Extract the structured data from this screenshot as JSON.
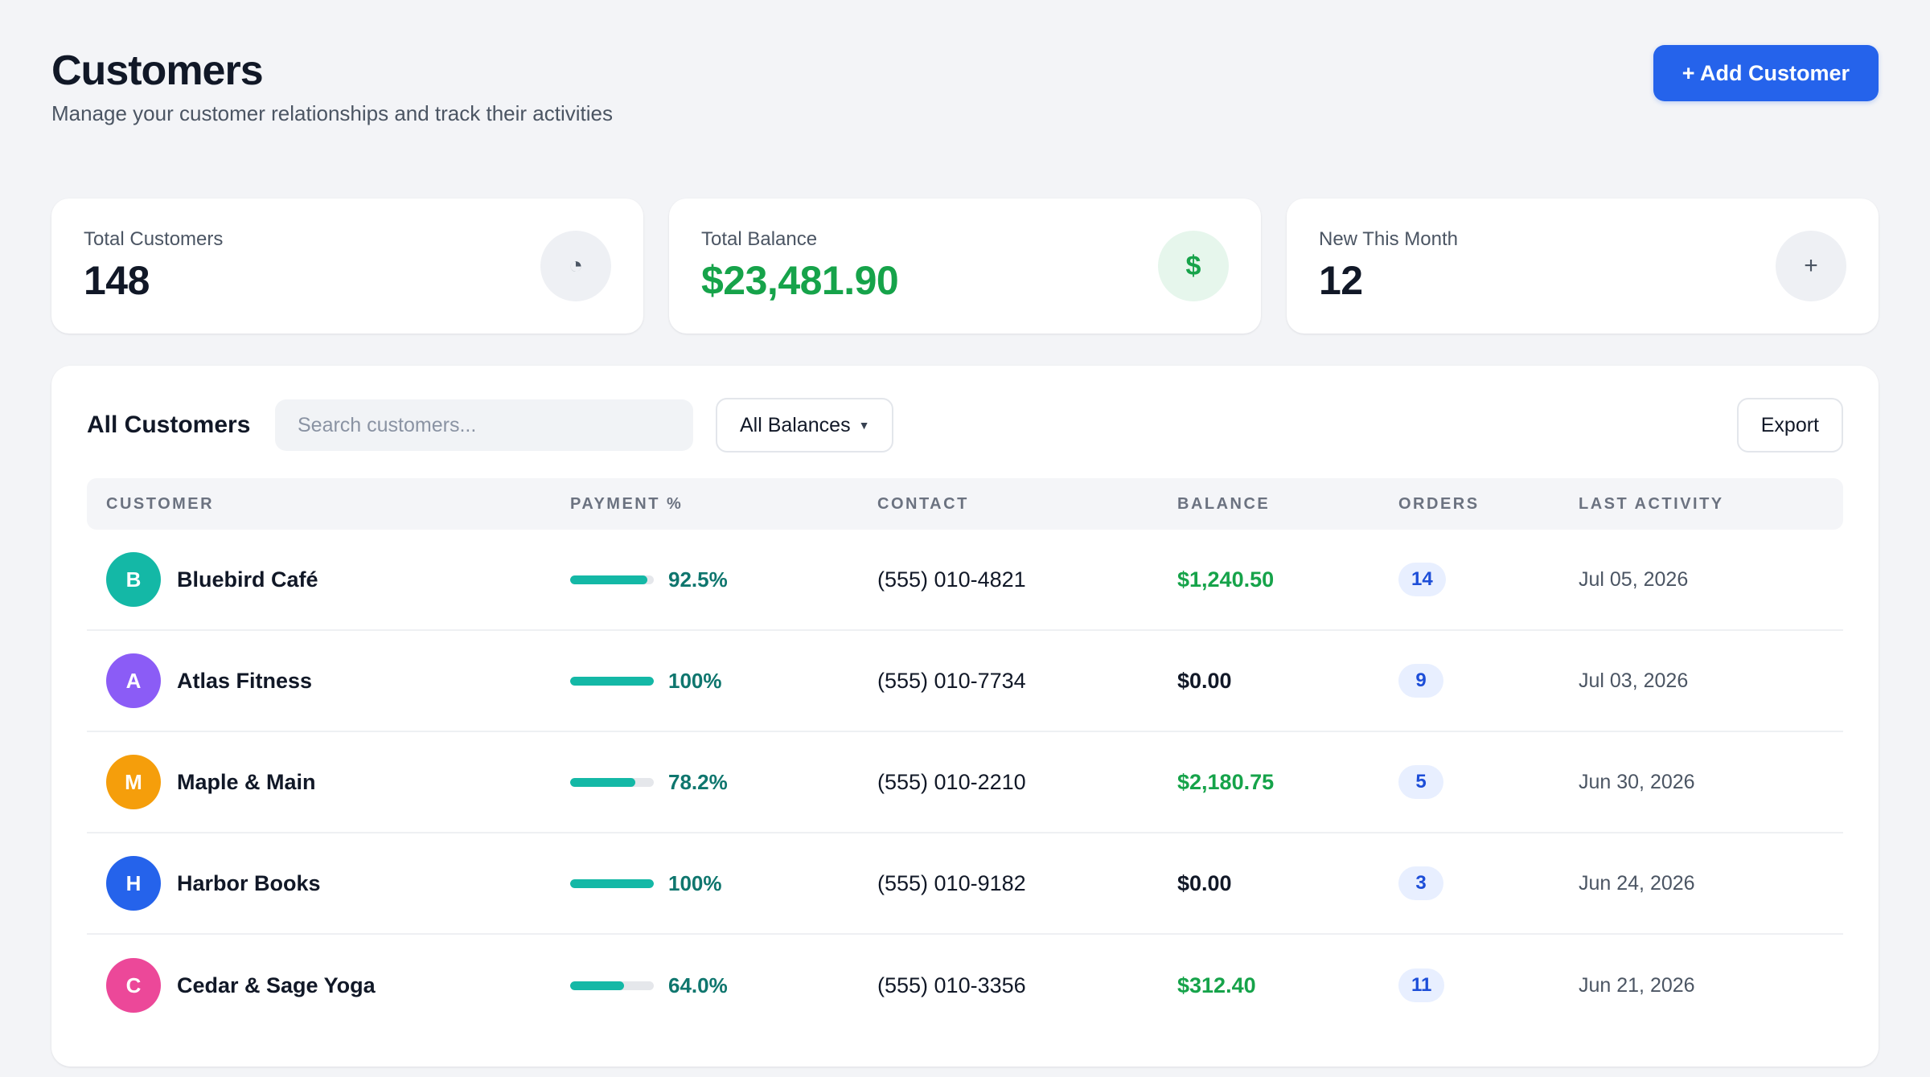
{
  "header": {
    "title": "Customers",
    "subtitle": "Manage your customer relationships and track their activities",
    "add_button_label": "+ Add Customer"
  },
  "stats": [
    {
      "label": "Total Customers",
      "value": "148",
      "icon": "pie-chart-icon",
      "icon_glyph": "◔",
      "highlight": false
    },
    {
      "label": "Total Balance",
      "value": "$23,481.90",
      "icon": "dollar-icon",
      "icon_glyph": "$",
      "highlight": true
    },
    {
      "label": "New This Month",
      "value": "12",
      "icon": "plus-icon",
      "icon_glyph": "+",
      "highlight": false
    }
  ],
  "table": {
    "title": "All Customers",
    "search_placeholder": "Search customers...",
    "filter_label": "All Balances",
    "export_label": "Export",
    "columns": [
      "CUSTOMER",
      "PAYMENT %",
      "CONTACT",
      "BALANCE",
      "ORDERS",
      "LAST ACTIVITY"
    ],
    "rows": [
      {
        "initial": "B",
        "avatar_color": "#14b8a6",
        "name": "Bluebird Café",
        "payment_pct": 92.5,
        "payment_label": "92.5%",
        "contact": "(555) 010-4821",
        "balance": "$1,240.50",
        "balance_due": true,
        "orders": "14",
        "last_activity": "Jul 05, 2026"
      },
      {
        "initial": "A",
        "avatar_color": "#8b5cf6",
        "name": "Atlas Fitness",
        "payment_pct": 100,
        "payment_label": "100%",
        "contact": "(555) 010-7734",
        "balance": "$0.00",
        "balance_due": false,
        "orders": "9",
        "last_activity": "Jul 03, 2026"
      },
      {
        "initial": "M",
        "avatar_color": "#f59e0b",
        "name": "Maple & Main",
        "payment_pct": 78.2,
        "payment_label": "78.2%",
        "contact": "(555) 010-2210",
        "balance": "$2,180.75",
        "balance_due": true,
        "orders": "5",
        "last_activity": "Jun 30, 2026"
      },
      {
        "initial": "H",
        "avatar_color": "#2563eb",
        "name": "Harbor Books",
        "payment_pct": 100,
        "payment_label": "100%",
        "contact": "(555) 010-9182",
        "balance": "$0.00",
        "balance_due": false,
        "orders": "3",
        "last_activity": "Jun 24, 2026"
      },
      {
        "initial": "C",
        "avatar_color": "#ec4899",
        "name": "Cedar & Sage Yoga",
        "payment_pct": 64.0,
        "payment_label": "64.0%",
        "contact": "(555) 010-3356",
        "balance": "$312.40",
        "balance_due": true,
        "orders": "11",
        "last_activity": "Jun 21, 2026"
      }
    ]
  }
}
